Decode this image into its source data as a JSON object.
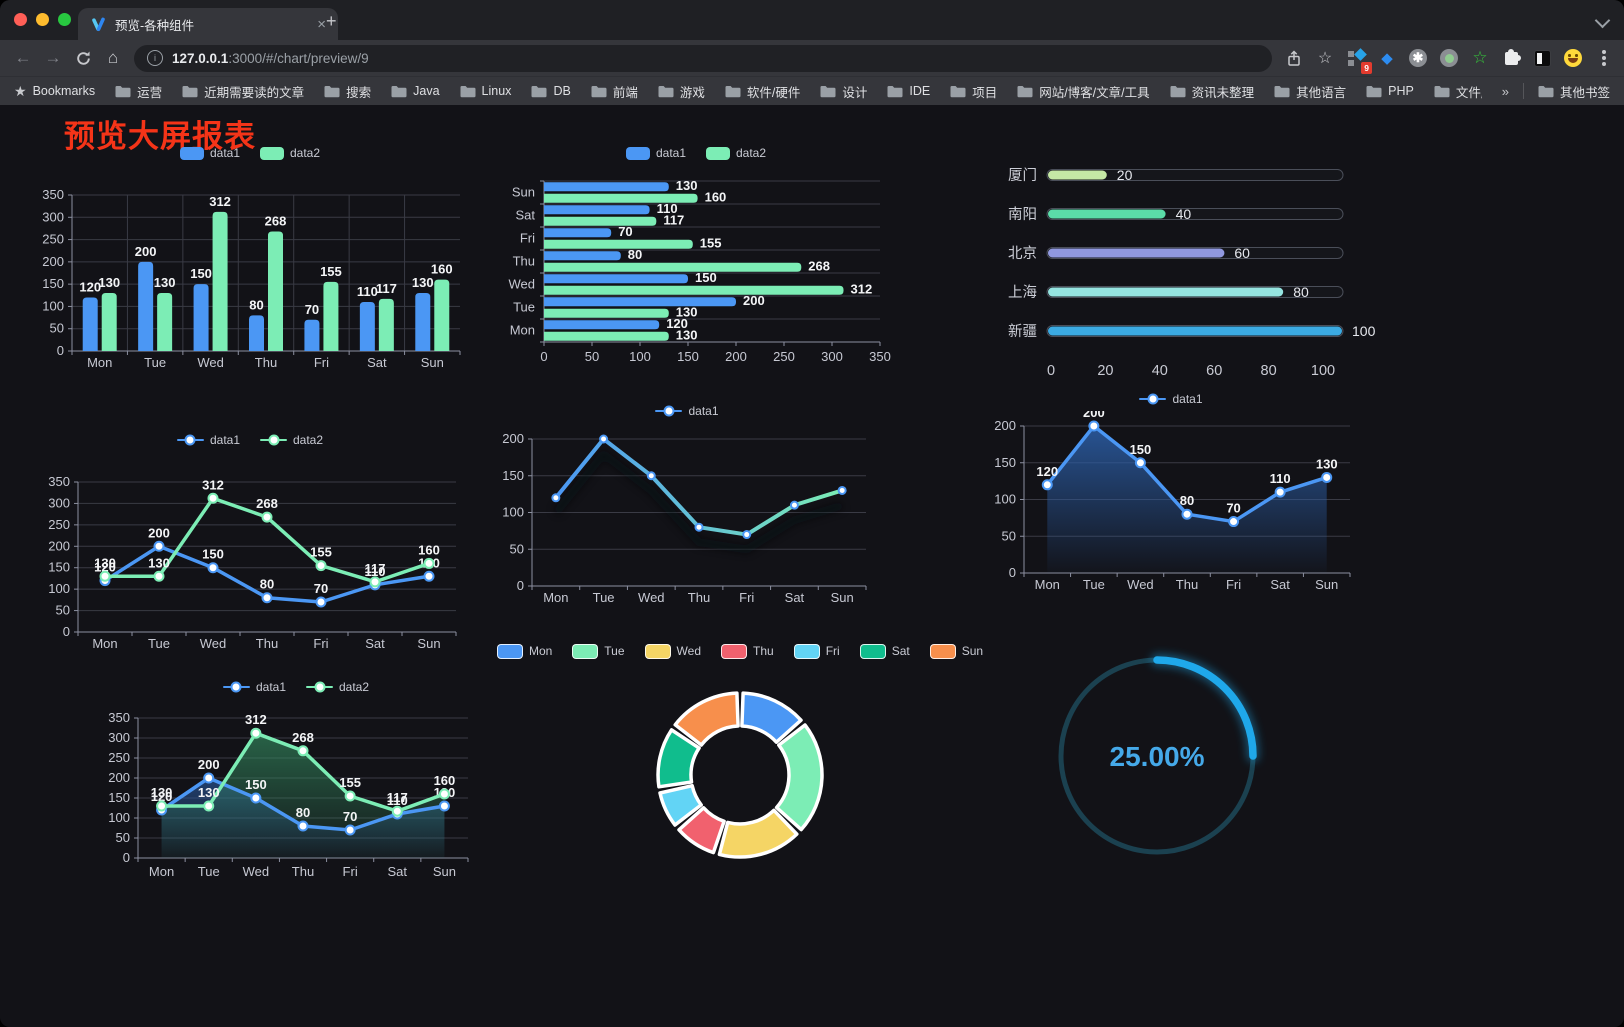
{
  "browser": {
    "tab_title": "预览-各种组件",
    "new_tab_label": "+",
    "close_label": "×",
    "url_host": "127.0.0.1",
    "url_rest": ":3000/#/chart/preview/9",
    "bookmarks_label": "Bookmarks",
    "bookmarks": [
      "运营",
      "近期需要读的文章",
      "搜索",
      "Java",
      "Linux",
      "DB",
      "前端",
      "游戏",
      "软件/硬件",
      "设计",
      "IDE",
      "项目",
      "网站/博客/文章/工具",
      "资讯未整理",
      "其他语言",
      "PHP",
      "文件服务器"
    ],
    "bookmarks_overflow": "»",
    "other_bookmarks": "其他书签",
    "extension_badge": "9"
  },
  "page": {
    "title": "预览大屏报表",
    "title_color": "#F53418"
  },
  "theme": {
    "background": "#121217",
    "axis_color": "#8C90A0",
    "grid_color": "#3A3B45",
    "tick_color": "#C7C9D3",
    "value_label_color": "#F4F5F7",
    "series_blue": "#4B97F4",
    "series_green": "#7CEDB5"
  },
  "chart_data": [
    {
      "id": "grouped-bar",
      "type": "bar",
      "title": "",
      "categories": [
        "Mon",
        "Tue",
        "Wed",
        "Thu",
        "Fri",
        "Sat",
        "Sun"
      ],
      "series": [
        {
          "name": "data1",
          "color": "#4B97F4",
          "values": [
            120,
            200,
            150,
            80,
            70,
            110,
            130
          ]
        },
        {
          "name": "data2",
          "color": "#7CEDB5",
          "values": [
            130,
            130,
            312,
            268,
            155,
            117,
            160
          ]
        }
      ],
      "ylim": [
        0,
        350
      ],
      "yticks": [
        0,
        50,
        100,
        150,
        200,
        250,
        300,
        350
      ],
      "legend_position": "top",
      "grid": true
    },
    {
      "id": "grouped-bar-horizontal",
      "type": "bar-horizontal",
      "categories": [
        "Mon",
        "Tue",
        "Wed",
        "Thu",
        "Fri",
        "Sat",
        "Sun"
      ],
      "series": [
        {
          "name": "data1",
          "color": "#4B97F4",
          "values": [
            120,
            200,
            150,
            80,
            70,
            110,
            130
          ]
        },
        {
          "name": "data2",
          "color": "#7CEDB5",
          "values": [
            130,
            130,
            312,
            268,
            155,
            117,
            160
          ]
        }
      ],
      "xlim": [
        0,
        350
      ],
      "xticks": [
        0,
        50,
        100,
        150,
        200,
        250,
        300,
        350
      ],
      "legend_position": "top"
    },
    {
      "id": "city-progress",
      "type": "progress",
      "max": 100,
      "xticks": [
        0,
        20,
        40,
        60,
        80,
        100
      ],
      "items": [
        {
          "label": "厦门",
          "value": 20,
          "color": "#C5E8A5"
        },
        {
          "label": "南阳",
          "value": 40,
          "color": "#5BDCA9"
        },
        {
          "label": "北京",
          "value": 60,
          "color": "#9098DF"
        },
        {
          "label": "上海",
          "value": 80,
          "color": "#95E4E0"
        },
        {
          "label": "新疆",
          "value": 100,
          "color": "#3BAAE2"
        }
      ]
    },
    {
      "id": "line-two-series",
      "type": "line",
      "categories": [
        "Mon",
        "Tue",
        "Wed",
        "Thu",
        "Fri",
        "Sat",
        "Sun"
      ],
      "series": [
        {
          "name": "data1",
          "color": "#4B97F4",
          "values": [
            120,
            200,
            150,
            80,
            70,
            110,
            130
          ]
        },
        {
          "name": "data2",
          "color": "#7CEDB5",
          "values": [
            130,
            130,
            312,
            268,
            155,
            117,
            160
          ]
        }
      ],
      "ylim": [
        0,
        350
      ],
      "yticks": [
        0,
        50,
        100,
        150,
        200,
        250,
        300,
        350
      ],
      "show_labels": true
    },
    {
      "id": "line-gradient",
      "type": "line",
      "categories": [
        "Mon",
        "Tue",
        "Wed",
        "Thu",
        "Fri",
        "Sat",
        "Sun"
      ],
      "series": [
        {
          "name": "data1",
          "gradient": [
            "#4B97F4",
            "#7CEDB5"
          ],
          "values": [
            120,
            200,
            150,
            80,
            70,
            110,
            130
          ]
        }
      ],
      "ylim": [
        0,
        200
      ],
      "yticks": [
        0,
        50,
        100,
        150,
        200
      ],
      "show_labels": false,
      "shadow": true
    },
    {
      "id": "area-single",
      "type": "area",
      "categories": [
        "Mon",
        "Tue",
        "Wed",
        "Thu",
        "Fri",
        "Sat",
        "Sun"
      ],
      "series": [
        {
          "name": "data1",
          "color": "#4B97F4",
          "area_from": "rgba(43,93,165,0.88)",
          "area_to": "rgba(43,93,165,0.03)",
          "values": [
            120,
            200,
            150,
            80,
            70,
            110,
            130
          ]
        }
      ],
      "ylim": [
        0,
        200
      ],
      "yticks": [
        0,
        50,
        100,
        150,
        200
      ],
      "show_labels": true
    },
    {
      "id": "area-two-series",
      "type": "area",
      "categories": [
        "Mon",
        "Tue",
        "Wed",
        "Thu",
        "Fri",
        "Sat",
        "Sun"
      ],
      "series": [
        {
          "name": "data1",
          "color": "#4B97F4",
          "area_from": "rgba(43,93,165,0.62)",
          "area_to": "rgba(43,93,165,0.04)",
          "values": [
            120,
            200,
            150,
            80,
            70,
            110,
            130
          ]
        },
        {
          "name": "data2",
          "color": "#7CEDB5",
          "area_from": "rgba(52,140,96,0.66)",
          "area_to": "rgba(52,140,96,0.05)",
          "values": [
            130,
            130,
            312,
            268,
            155,
            117,
            160
          ]
        }
      ],
      "ylim": [
        0,
        350
      ],
      "yticks": [
        0,
        50,
        100,
        150,
        200,
        250,
        300,
        350
      ],
      "show_labels": true
    },
    {
      "id": "weekday-donut",
      "type": "pie",
      "labels": [
        "Mon",
        "Tue",
        "Wed",
        "Thu",
        "Fri",
        "Sat",
        "Sun"
      ],
      "values": [
        120,
        200,
        150,
        80,
        70,
        110,
        130
      ],
      "colors": [
        "#4B97F4",
        "#7CEDB5",
        "#F5D565",
        "#F1616E",
        "#62D4F5",
        "#10BD8D",
        "#F78F4C"
      ],
      "inner_radius_ratio": 0.6,
      "border_color": "#FFFFFF"
    },
    {
      "id": "percent-gauge",
      "type": "gauge",
      "value": 25,
      "label": "25.00%",
      "bar_color": "#1FA8EA",
      "track_color": "#1B4150",
      "text_color": "#45A9E9"
    }
  ]
}
